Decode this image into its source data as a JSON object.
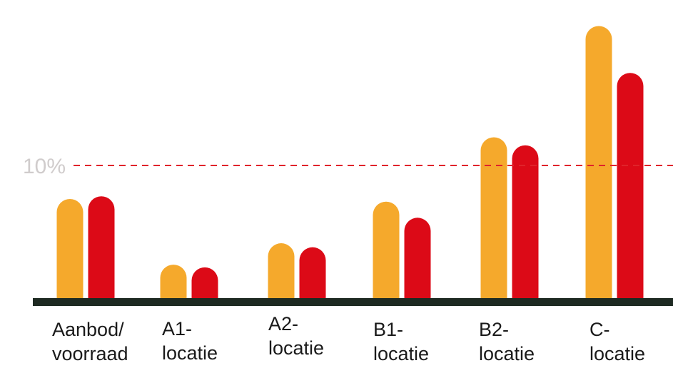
{
  "chart_data": {
    "type": "bar",
    "categories": [
      [
        "Aanbod/",
        "voorraad"
      ],
      [
        "A1-",
        "locatie"
      ],
      [
        "A2-",
        "locatie"
      ],
      [
        "B1-",
        "locatie"
      ],
      [
        "B2-",
        "locatie"
      ],
      [
        "C-",
        "locatie"
      ]
    ],
    "series": [
      {
        "color": "#F5A92C",
        "values": [
          7.5,
          2.6,
          4.2,
          7.3,
          12.1,
          20.4
        ]
      },
      {
        "color": "#DC0A17",
        "values": [
          7.7,
          2.4,
          3.9,
          6.1,
          11.5,
          16.9
        ]
      }
    ],
    "ylim": [
      0,
      21.7
    ],
    "reference_line": {
      "value": 10,
      "label": "10%",
      "color": "#E0232B"
    },
    "baseline_color": "#1E2A22",
    "xlabel": "",
    "ylabel": "",
    "grid": false,
    "legend": "none"
  }
}
